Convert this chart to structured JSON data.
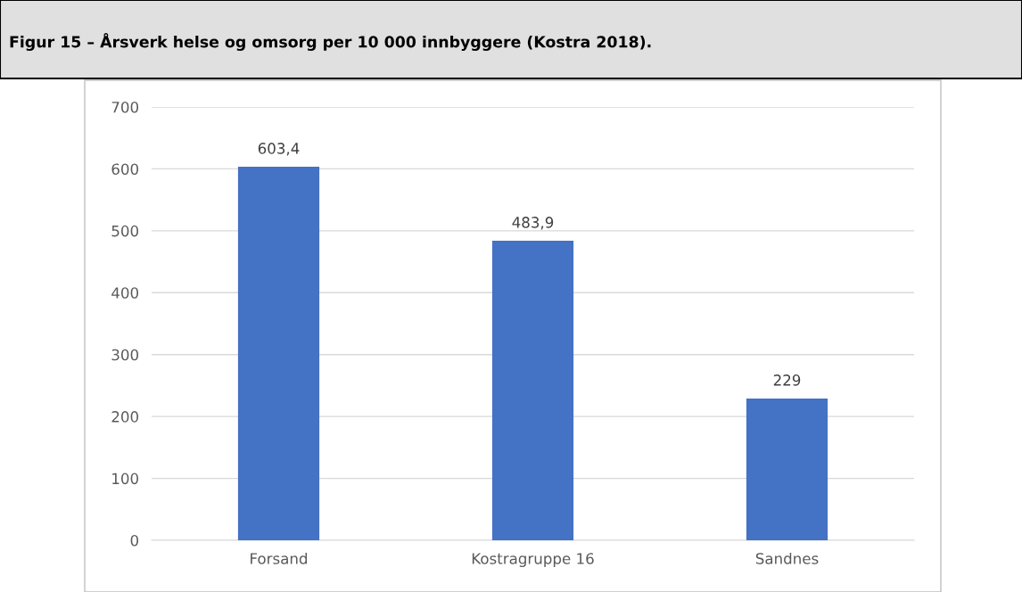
{
  "chart_data": {
    "type": "bar",
    "title": "Figur 15 – Årsverk helse og omsorg per 10 000 innbyggere (Kostra 2018).",
    "categories": [
      "Forsand",
      "Kostragruppe 16",
      "Sandnes"
    ],
    "values": [
      603.4,
      483.9,
      229
    ],
    "value_labels": [
      "603,4",
      "483,9",
      "229"
    ],
    "color": "#4472c4",
    "ylim": [
      0,
      700
    ],
    "yticks": [
      0,
      100,
      200,
      300,
      400,
      500,
      600,
      700
    ],
    "grid": "y",
    "legend": false
  }
}
